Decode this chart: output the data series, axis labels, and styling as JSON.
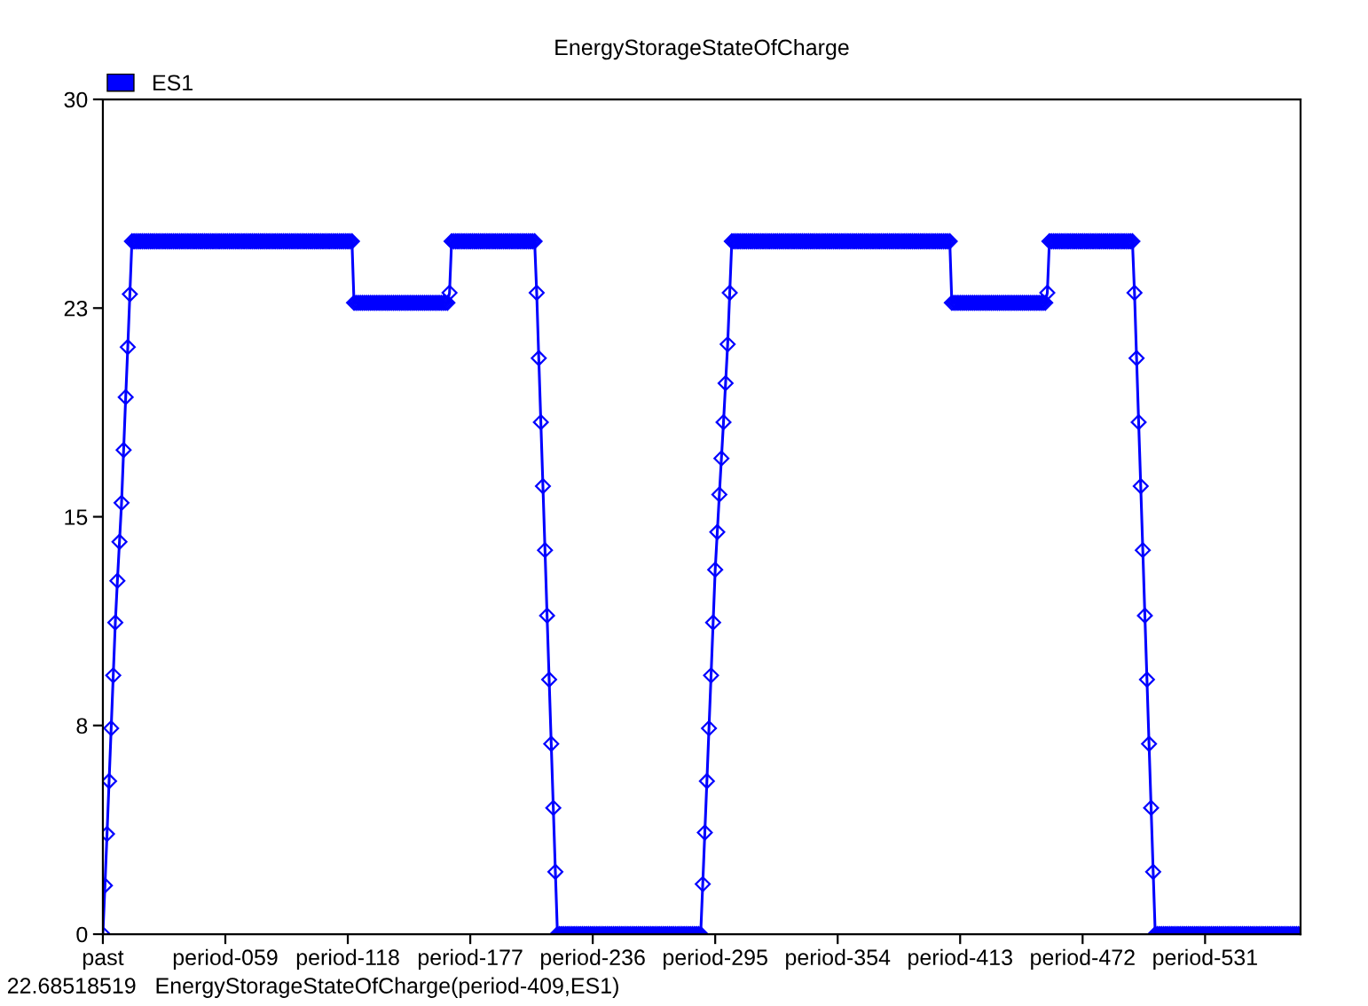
{
  "chart_data": {
    "type": "line",
    "title": "EnergyStorageStateOfCharge",
    "categories": [
      "past",
      null,
      null,
      null,
      null,
      null,
      null,
      null,
      null,
      null,
      null,
      null,
      null,
      null,
      null,
      null,
      null,
      null,
      null,
      null,
      null,
      null,
      null,
      null,
      null,
      null,
      null,
      null,
      null,
      null,
      null,
      null,
      null,
      null,
      null,
      null,
      null,
      null,
      null,
      null,
      null,
      null,
      null,
      null,
      null,
      null,
      null,
      null,
      null,
      null,
      null,
      null,
      null,
      null,
      null,
      null,
      null,
      null,
      null,
      "period-059",
      null,
      null,
      null,
      null,
      null,
      null,
      null,
      null,
      null,
      null,
      null,
      null,
      null,
      null,
      null,
      null,
      null,
      null,
      null,
      null,
      null,
      null,
      null,
      null,
      null,
      null,
      null,
      null,
      null,
      null,
      null,
      null,
      null,
      null,
      null,
      null,
      null,
      null,
      null,
      null,
      null,
      null,
      null,
      null,
      null,
      null,
      null,
      null,
      null,
      null,
      null,
      null,
      null,
      null,
      null,
      null,
      null,
      null,
      "period-118",
      null,
      null,
      null,
      null,
      null,
      null,
      null,
      null,
      null,
      null,
      null,
      null,
      null,
      null,
      null,
      null,
      null,
      null,
      null,
      null,
      null,
      null,
      null,
      null,
      null,
      null,
      null,
      null,
      null,
      null,
      null,
      null,
      null,
      null,
      null,
      null,
      null,
      null,
      null,
      null,
      null,
      null,
      null,
      null,
      null,
      null,
      null,
      null,
      null,
      null,
      null,
      null,
      null,
      null,
      null,
      null,
      null,
      null,
      "period-177",
      null,
      null,
      null,
      null,
      null,
      null,
      null,
      null,
      null,
      null,
      null,
      null,
      null,
      null,
      null,
      null,
      null,
      null,
      null,
      null,
      null,
      null,
      null,
      null,
      null,
      null,
      null,
      null,
      null,
      null,
      null,
      null,
      null,
      null,
      null,
      null,
      null,
      null,
      null,
      null,
      null,
      null,
      null,
      null,
      null,
      null,
      null,
      null,
      null,
      null,
      null,
      null,
      null,
      null,
      null,
      null,
      null,
      null,
      "period-236",
      null,
      null,
      null,
      null,
      null,
      null,
      null,
      null,
      null,
      null,
      null,
      null,
      null,
      null,
      null,
      null,
      null,
      null,
      null,
      null,
      null,
      null,
      null,
      null,
      null,
      null,
      null,
      null,
      null,
      null,
      null,
      null,
      null,
      null,
      null,
      null,
      null,
      null,
      null,
      null,
      null,
      null,
      null,
      null,
      null,
      null,
      null,
      null,
      null,
      null,
      null,
      null,
      null,
      null,
      null,
      null,
      null,
      null,
      "period-295",
      null,
      null,
      null,
      null,
      null,
      null,
      null,
      null,
      null,
      null,
      null,
      null,
      null,
      null,
      null,
      null,
      null,
      null,
      null,
      null,
      null,
      null,
      null,
      null,
      null,
      null,
      null,
      null,
      null,
      null,
      null,
      null,
      null,
      null,
      null,
      null,
      null,
      null,
      null,
      null,
      null,
      null,
      null,
      null,
      null,
      null,
      null,
      null,
      null,
      null,
      null,
      null,
      null,
      null,
      null,
      null,
      null,
      null,
      "period-354",
      null,
      null,
      null,
      null,
      null,
      null,
      null,
      null,
      null,
      null,
      null,
      null,
      null,
      null,
      null,
      null,
      null,
      null,
      null,
      null,
      null,
      null,
      null,
      null,
      null,
      null,
      null,
      null,
      null,
      null,
      null,
      null,
      null,
      null,
      null,
      null,
      null,
      null,
      null,
      null,
      null,
      null,
      null,
      null,
      null,
      null,
      null,
      null,
      null,
      null,
      null,
      null,
      null,
      null,
      null,
      null,
      null,
      null,
      "period-413",
      null,
      null,
      null,
      null,
      null,
      null,
      null,
      null,
      null,
      null,
      null,
      null,
      null,
      null,
      null,
      null,
      null,
      null,
      null,
      null,
      null,
      null,
      null,
      null,
      null,
      null,
      null,
      null,
      null,
      null,
      null,
      null,
      null,
      null,
      null,
      null,
      null,
      null,
      null,
      null,
      null,
      null,
      null,
      null,
      null,
      null,
      null,
      null,
      null,
      null,
      null,
      null,
      null,
      null,
      null,
      null,
      null,
      null,
      "period-472",
      null,
      null,
      null,
      null,
      null,
      null,
      null,
      null,
      null,
      null,
      null,
      null,
      null,
      null,
      null,
      null,
      null,
      null,
      null,
      null,
      null,
      null,
      null,
      null,
      null,
      null,
      null,
      null,
      null,
      null,
      null,
      null,
      null,
      null,
      null,
      null,
      null,
      null,
      null,
      null,
      null,
      null,
      null,
      null,
      null,
      null,
      null,
      null,
      null,
      null,
      null,
      null,
      null,
      null,
      null,
      null,
      null,
      null,
      "period-531",
      null,
      null,
      null,
      null,
      null,
      null,
      null,
      null,
      null,
      null,
      null,
      null,
      null,
      null,
      null,
      null,
      null,
      null,
      null,
      null,
      null,
      null,
      null,
      null,
      null,
      null,
      null,
      null,
      null,
      null,
      null,
      null,
      null,
      null,
      null,
      null,
      null,
      null,
      null,
      null,
      null,
      null,
      null,
      null,
      null,
      null
    ],
    "series": [
      {
        "name": "ES1",
        "color": "#0000ff",
        "values": [
          0,
          1.75,
          3.6,
          5.5,
          7.4,
          9.3,
          11.2,
          12.7,
          14.1,
          15.5,
          17.4,
          19.3,
          21.1,
          23.0,
          24.9,
          24.9,
          24.9,
          24.9,
          24.9,
          24.9,
          24.9,
          24.9,
          24.9,
          24.9,
          24.9,
          24.9,
          24.9,
          24.9,
          24.9,
          24.9,
          24.9,
          24.9,
          24.9,
          24.9,
          24.9,
          24.9,
          24.9,
          24.9,
          24.9,
          24.9,
          24.9,
          24.9,
          24.9,
          24.9,
          24.9,
          24.9,
          24.9,
          24.9,
          24.9,
          24.9,
          24.9,
          24.9,
          24.9,
          24.9,
          24.9,
          24.9,
          24.9,
          24.9,
          24.9,
          24.9,
          24.9,
          24.9,
          24.9,
          24.9,
          24.9,
          24.9,
          24.9,
          24.9,
          24.9,
          24.9,
          24.9,
          24.9,
          24.9,
          24.9,
          24.9,
          24.9,
          24.9,
          24.9,
          24.9,
          24.9,
          24.9,
          24.9,
          24.9,
          24.9,
          24.9,
          24.9,
          24.9,
          24.9,
          24.9,
          24.9,
          24.9,
          24.9,
          24.9,
          24.9,
          24.9,
          24.9,
          24.9,
          24.9,
          24.9,
          24.9,
          24.9,
          24.9,
          24.9,
          24.9,
          24.9,
          24.9,
          24.9,
          24.9,
          24.9,
          24.9,
          24.9,
          24.9,
          24.9,
          24.9,
          24.9,
          24.9,
          24.9,
          24.9,
          24.9,
          24.9,
          24.9,
          22.69,
          22.69,
          22.69,
          22.69,
          22.69,
          22.69,
          22.69,
          22.69,
          22.69,
          22.69,
          22.69,
          22.69,
          22.69,
          22.69,
          22.69,
          22.69,
          22.69,
          22.69,
          22.69,
          22.69,
          22.69,
          22.69,
          22.69,
          22.69,
          22.69,
          22.69,
          22.69,
          22.69,
          22.69,
          22.69,
          22.69,
          22.69,
          22.69,
          22.69,
          22.69,
          22.69,
          22.69,
          22.69,
          22.69,
          22.69,
          22.69,
          22.69,
          22.69,
          22.69,
          22.69,
          22.69,
          23.05,
          24.9,
          24.9,
          24.9,
          24.9,
          24.9,
          24.9,
          24.9,
          24.9,
          24.9,
          24.9,
          24.9,
          24.9,
          24.9,
          24.9,
          24.9,
          24.9,
          24.9,
          24.9,
          24.9,
          24.9,
          24.9,
          24.9,
          24.9,
          24.9,
          24.9,
          24.9,
          24.9,
          24.9,
          24.9,
          24.9,
          24.9,
          24.9,
          24.9,
          24.9,
          24.9,
          24.9,
          24.9,
          24.9,
          24.9,
          24.9,
          24.9,
          23.05,
          20.7,
          18.4,
          16.1,
          13.8,
          11.45,
          9.15,
          6.84,
          4.54,
          2.24,
          0,
          0,
          0,
          0,
          0,
          0,
          0,
          0,
          0,
          0,
          0,
          0,
          0,
          0,
          0,
          0,
          0,
          0,
          0,
          0,
          0,
          0,
          0,
          0,
          0,
          0,
          0,
          0,
          0,
          0,
          0,
          0,
          0,
          0,
          0,
          0,
          0,
          0,
          0,
          0,
          0,
          0,
          0,
          0,
          0,
          0,
          0,
          0,
          0,
          0,
          0,
          0,
          0,
          0,
          0,
          0,
          0,
          0,
          0,
          0,
          0,
          0,
          0,
          0,
          0,
          0,
          0,
          0,
          0,
          0,
          1.8,
          3.65,
          5.5,
          7.4,
          9.3,
          11.2,
          13.1,
          14.45,
          15.8,
          17.1,
          18.4,
          19.8,
          21.2,
          23.05,
          24.9,
          24.9,
          24.9,
          24.9,
          24.9,
          24.9,
          24.9,
          24.9,
          24.9,
          24.9,
          24.9,
          24.9,
          24.9,
          24.9,
          24.9,
          24.9,
          24.9,
          24.9,
          24.9,
          24.9,
          24.9,
          24.9,
          24.9,
          24.9,
          24.9,
          24.9,
          24.9,
          24.9,
          24.9,
          24.9,
          24.9,
          24.9,
          24.9,
          24.9,
          24.9,
          24.9,
          24.9,
          24.9,
          24.9,
          24.9,
          24.9,
          24.9,
          24.9,
          24.9,
          24.9,
          24.9,
          24.9,
          24.9,
          24.9,
          24.9,
          24.9,
          24.9,
          24.9,
          24.9,
          24.9,
          24.9,
          24.9,
          24.9,
          24.9,
          24.9,
          24.9,
          24.9,
          24.9,
          24.9,
          24.9,
          24.9,
          24.9,
          24.9,
          24.9,
          24.9,
          24.9,
          24.9,
          24.9,
          24.9,
          24.9,
          24.9,
          24.9,
          24.9,
          24.9,
          24.9,
          24.9,
          24.9,
          24.9,
          24.9,
          24.9,
          24.9,
          24.9,
          24.9,
          24.9,
          24.9,
          24.9,
          24.9,
          24.9,
          24.9,
          24.9,
          24.9,
          24.9,
          24.9,
          24.9,
          24.9,
          24.9,
          24.9,
          24.9,
          24.9,
          24.9,
          24.9,
          22.69,
          22.69,
          22.69,
          22.69,
          22.69,
          22.69,
          22.69,
          22.69,
          22.69,
          22.69,
          22.69,
          22.69,
          22.69,
          22.69,
          22.69,
          22.69,
          22.69,
          22.69,
          22.69,
          22.69,
          22.69,
          22.69,
          22.69,
          22.69,
          22.69,
          22.69,
          22.69,
          22.69,
          22.69,
          22.69,
          22.69,
          22.69,
          22.69,
          22.69,
          22.69,
          22.69,
          22.69,
          22.69,
          22.69,
          22.69,
          22.69,
          22.69,
          22.69,
          22.69,
          22.69,
          22.69,
          23.05,
          24.9,
          24.9,
          24.9,
          24.9,
          24.9,
          24.9,
          24.9,
          24.9,
          24.9,
          24.9,
          24.9,
          24.9,
          24.9,
          24.9,
          24.9,
          24.9,
          24.9,
          24.9,
          24.9,
          24.9,
          24.9,
          24.9,
          24.9,
          24.9,
          24.9,
          24.9,
          24.9,
          24.9,
          24.9,
          24.9,
          24.9,
          24.9,
          24.9,
          24.9,
          24.9,
          24.9,
          24.9,
          24.9,
          24.9,
          24.9,
          24.9,
          23.05,
          20.7,
          18.4,
          16.1,
          13.8,
          11.45,
          9.15,
          6.84,
          4.54,
          2.24,
          0,
          0,
          0,
          0,
          0,
          0,
          0,
          0,
          0,
          0,
          0,
          0,
          0,
          0,
          0,
          0,
          0,
          0,
          0,
          0,
          0,
          0,
          0,
          0,
          0,
          0,
          0,
          0,
          0,
          0,
          0,
          0,
          0,
          0,
          0,
          0,
          0,
          0,
          0,
          0,
          0,
          0,
          0,
          0,
          0,
          0,
          0,
          0,
          0,
          0,
          0,
          0,
          0,
          0,
          0,
          0,
          0,
          0,
          0,
          0,
          0,
          0,
          0,
          0,
          0,
          0,
          0,
          0,
          0,
          0,
          0
        ]
      }
    ],
    "ylim": [
      0,
      30
    ],
    "yticks": [
      0,
      {
        "value": 7.5,
        "label": "8"
      },
      15,
      {
        "value": 22.5,
        "label": "23"
      },
      30
    ],
    "marker": "diamond",
    "line_style": "solid",
    "grid": false,
    "legend": "top left",
    "annotations": [
      "22.68518519   EnergyStorageStateOfCharge(period-409,ES1)"
    ]
  }
}
